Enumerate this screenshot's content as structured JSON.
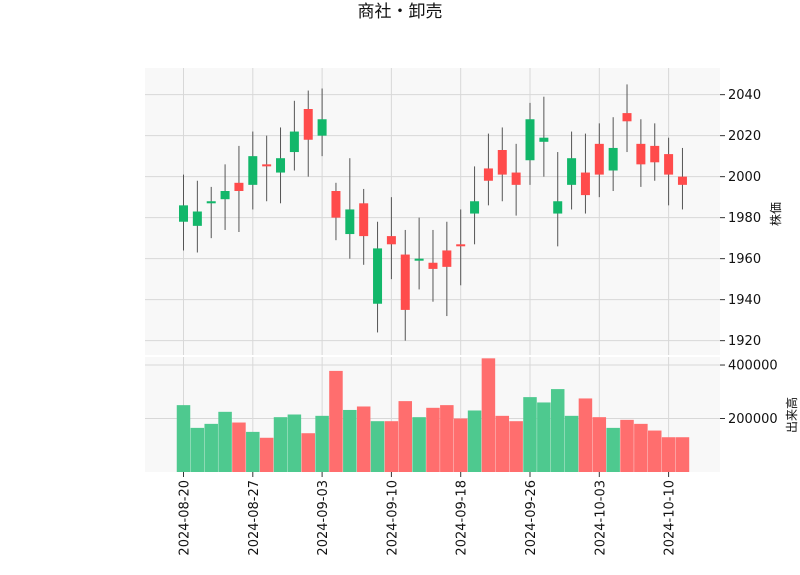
{
  "chart_data": {
    "type": "candlestick",
    "title": "商社・卸売",
    "price_ylabel": "株価",
    "volume_ylabel": "出来高",
    "price_ylim": [
      1913,
      2053
    ],
    "volume_ylim": [
      0,
      430000
    ],
    "price_ticks": [
      1920,
      1940,
      1960,
      1980,
      2000,
      2020,
      2040
    ],
    "volume_ticks": [
      200000,
      400000
    ],
    "volume_tick_labels": [
      "200000",
      "400000"
    ],
    "date_ticks": [
      {
        "index": 0,
        "label": "2024-08-20"
      },
      {
        "index": 5,
        "label": "2024-08-27"
      },
      {
        "index": 10,
        "label": "2024-09-03"
      },
      {
        "index": 15,
        "label": "2024-09-10"
      },
      {
        "index": 20,
        "label": "2024-09-18"
      },
      {
        "index": 25,
        "label": "2024-09-26"
      },
      {
        "index": 30,
        "label": "2024-10-03"
      },
      {
        "index": 35,
        "label": "2024-10-10"
      }
    ],
    "colors": {
      "up": "#ff4b4b",
      "down": "#12b76a",
      "wick": "#555555",
      "vol_up": "#ff6e6e",
      "vol_down": "#4ec98f"
    },
    "candles": [
      {
        "open": 1986,
        "high": 2001,
        "low": 1964,
        "close": 1978
      },
      {
        "open": 1983,
        "high": 1998,
        "low": 1963,
        "close": 1976
      },
      {
        "open": 1988,
        "high": 1995,
        "low": 1970,
        "close": 1987
      },
      {
        "open": 1993,
        "high": 2006,
        "low": 1974,
        "close": 1989
      },
      {
        "open": 1993,
        "high": 2015,
        "low": 1973,
        "close": 1997
      },
      {
        "open": 2010,
        "high": 2022,
        "low": 1984,
        "close": 1996
      },
      {
        "open": 2006,
        "high": 2020,
        "low": 1988,
        "close": 2006
      },
      {
        "open": 2009,
        "high": 2024,
        "low": 1987,
        "close": 2002
      },
      {
        "open": 2022,
        "high": 2037,
        "low": 2003,
        "close": 2012
      },
      {
        "open": 2018,
        "high": 2042,
        "low": 2000,
        "close": 2033
      },
      {
        "open": 2028,
        "high": 2043,
        "low": 2010,
        "close": 2020
      },
      {
        "open": 1980,
        "high": 1997,
        "low": 1969,
        "close": 1993
      },
      {
        "open": 1984,
        "high": 2009,
        "low": 1960,
        "close": 1972
      },
      {
        "open": 1971,
        "high": 1994,
        "low": 1957,
        "close": 1987
      },
      {
        "open": 1965,
        "high": 1978,
        "low": 1924,
        "close": 1938
      },
      {
        "open": 1967,
        "high": 1990,
        "low": 1950,
        "close": 1971
      },
      {
        "open": 1935,
        "high": 1974,
        "low": 1920,
        "close": 1962
      },
      {
        "open": 1960,
        "high": 1980,
        "low": 1945,
        "close": 1959
      },
      {
        "open": 1955,
        "high": 1974,
        "low": 1939,
        "close": 1958
      },
      {
        "open": 1956,
        "high": 1978,
        "low": 1932,
        "close": 1964
      },
      {
        "open": 1967,
        "high": 1984,
        "low": 1947,
        "close": 1967
      },
      {
        "open": 1988,
        "high": 2005,
        "low": 1967,
        "close": 1982
      },
      {
        "open": 1998,
        "high": 2021,
        "low": 1986,
        "close": 2004
      },
      {
        "open": 2001,
        "high": 2024,
        "low": 1988,
        "close": 2013
      },
      {
        "open": 1996,
        "high": 2016,
        "low": 1981,
        "close": 2002
      },
      {
        "open": 2028,
        "high": 2036,
        "low": 1996,
        "close": 2008
      },
      {
        "open": 2019,
        "high": 2039,
        "low": 2000,
        "close": 2017
      },
      {
        "open": 1988,
        "high": 2012,
        "low": 1966,
        "close": 1982
      },
      {
        "open": 2009,
        "high": 2022,
        "low": 1984,
        "close": 1996
      },
      {
        "open": 1991,
        "high": 2021,
        "low": 1982,
        "close": 2002
      },
      {
        "open": 2001,
        "high": 2026,
        "low": 1990,
        "close": 2016
      },
      {
        "open": 2014,
        "high": 2029,
        "low": 1993,
        "close": 2003
      },
      {
        "open": 2027,
        "high": 2045,
        "low": 2012,
        "close": 2031
      },
      {
        "open": 2006,
        "high": 2028,
        "low": 1995,
        "close": 2016
      },
      {
        "open": 2007,
        "high": 2026,
        "low": 1998,
        "close": 2015
      },
      {
        "open": 2001,
        "high": 2019,
        "low": 1986,
        "close": 2011
      },
      {
        "open": 1996,
        "high": 2014,
        "low": 1984,
        "close": 2000
      }
    ],
    "volumes": [
      250000,
      165000,
      180000,
      225000,
      185000,
      150000,
      128000,
      205000,
      215000,
      145000,
      210000,
      378000,
      232000,
      245000,
      190000,
      190000,
      265000,
      205000,
      240000,
      250000,
      200000,
      230000,
      425000,
      210000,
      190000,
      280000,
      260000,
      310000,
      210000,
      275000,
      205000,
      165000,
      195000,
      180000,
      155000,
      130000,
      130000
    ]
  }
}
